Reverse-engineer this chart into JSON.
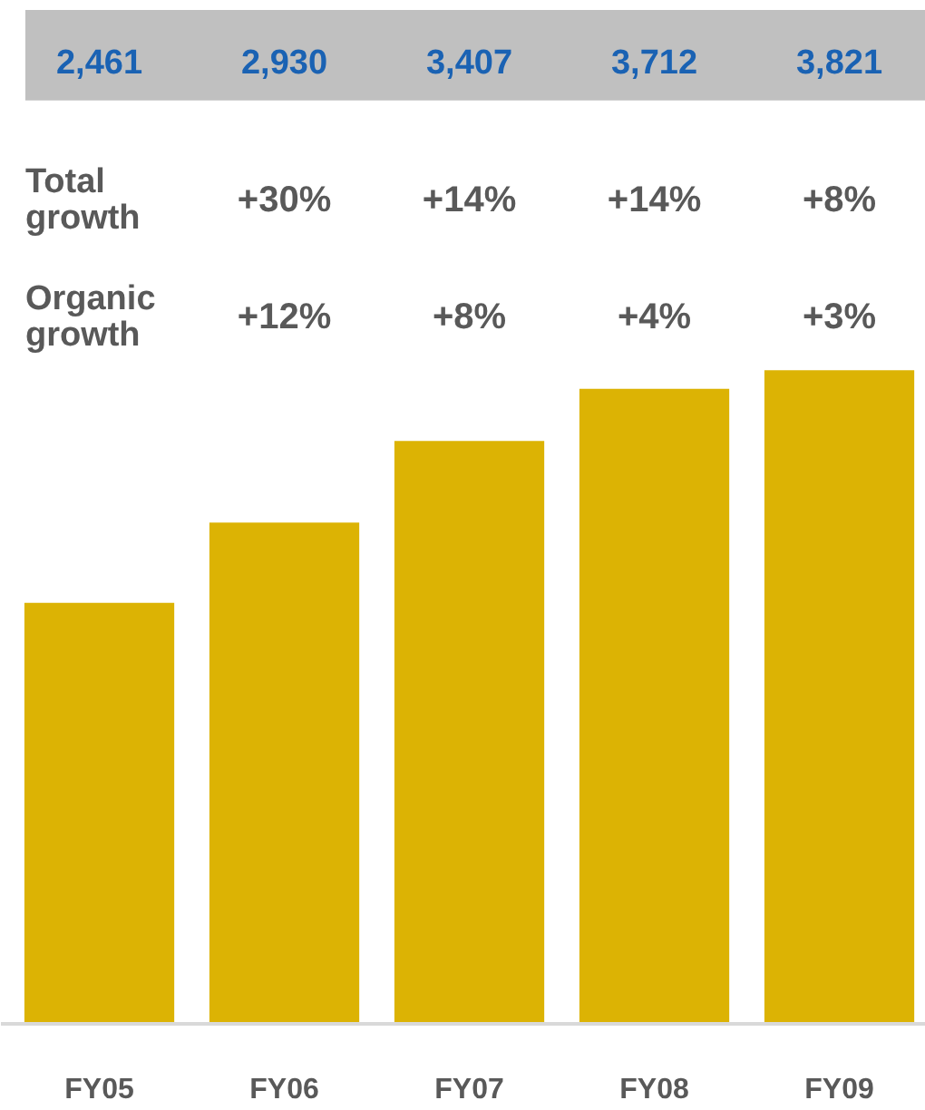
{
  "chart_data": {
    "type": "bar",
    "categories": [
      "FY05",
      "FY06",
      "FY07",
      "FY08",
      "FY09"
    ],
    "values": [
      2461,
      2930,
      3407,
      3712,
      3821
    ],
    "value_labels": [
      "2,461",
      "2,930",
      "3,407",
      "3,712",
      "3,821"
    ],
    "color": "#dcb304",
    "grid": false,
    "tick_labels": "x",
    "annotations": [
      "Total growth",
      "+30%",
      "+14%",
      "+14%",
      "+8%",
      "Organic growth",
      "+12%",
      "+8%",
      "+4%",
      "+3%"
    ]
  }
}
